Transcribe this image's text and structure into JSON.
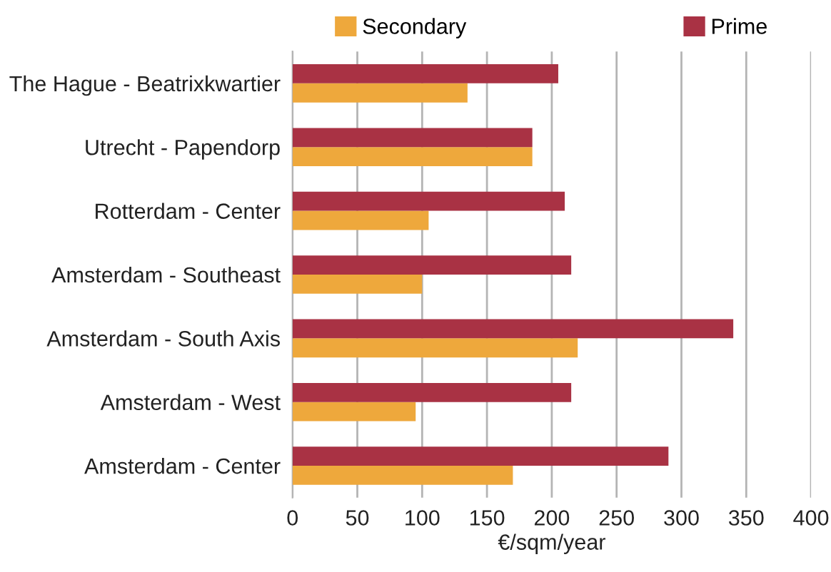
{
  "chart_data": {
    "type": "bar",
    "orientation": "horizontal",
    "xlabel": "€/sqm/year",
    "categories": [
      "The Hague - Beatrixkwartier",
      "Utrecht - Papendorp",
      "Rotterdam - Center",
      "Amsterdam - Southeast",
      "Amsterdam - South Axis",
      "Amsterdam - West",
      "Amsterdam - Center"
    ],
    "series": [
      {
        "name": "Secondary",
        "color": "#eea83c",
        "values": [
          135,
          185,
          105,
          100,
          220,
          95,
          170
        ]
      },
      {
        "name": "Prime",
        "color": "#a93244",
        "values": [
          205,
          185,
          210,
          215,
          340,
          215,
          290
        ]
      }
    ],
    "xlim": [
      0,
      400
    ],
    "xticks": [
      0,
      50,
      100,
      150,
      200,
      250,
      300,
      350,
      400
    ],
    "grid": "x",
    "legend": "top"
  }
}
